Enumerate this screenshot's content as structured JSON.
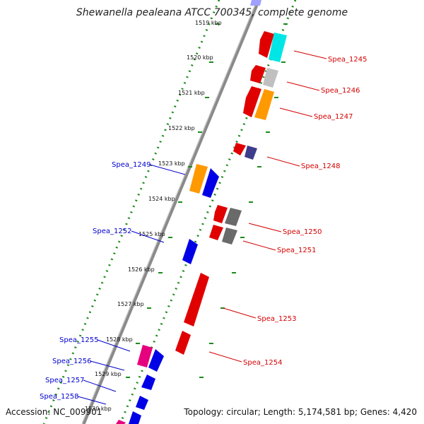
{
  "title": "Shewanella pealeana ATCC 700345, complete genome",
  "footer": {
    "accession": "Accession: NC_009901",
    "summary": "Topology: circular; Length: 5,174,581 bp; Genes: 4,420"
  },
  "colors": {
    "forward_label": "#d40000",
    "reverse_label": "#0000cc",
    "tick_marks": "#1e8a1e",
    "backbone": "#888888"
  },
  "ticks": [
    "1519 kbp",
    "1520 kbp",
    "1521 kbp",
    "1522 kbp",
    "1523 kbp",
    "1524 kbp",
    "1525 kbp",
    "1526 kbp",
    "1527 kbp",
    "1528 kbp",
    "1529 kbp",
    "1530 kbp"
  ],
  "genes_forward": [
    {
      "label": "Spea_1245"
    },
    {
      "label": "Spea_1246"
    },
    {
      "label": "Spea_1247"
    },
    {
      "label": "Spea_1248"
    },
    {
      "label": "Spea_1250"
    },
    {
      "label": "Spea_1251"
    },
    {
      "label": "Spea_1253"
    },
    {
      "label": "Spea_1254"
    }
  ],
  "genes_reverse": [
    {
      "label": "Spea_1249"
    },
    {
      "label": "Spea_1252"
    },
    {
      "label": "Spea_1255"
    },
    {
      "label": "Spea_1256"
    },
    {
      "label": "Spea_1257"
    },
    {
      "label": "Spea_1258"
    }
  ]
}
